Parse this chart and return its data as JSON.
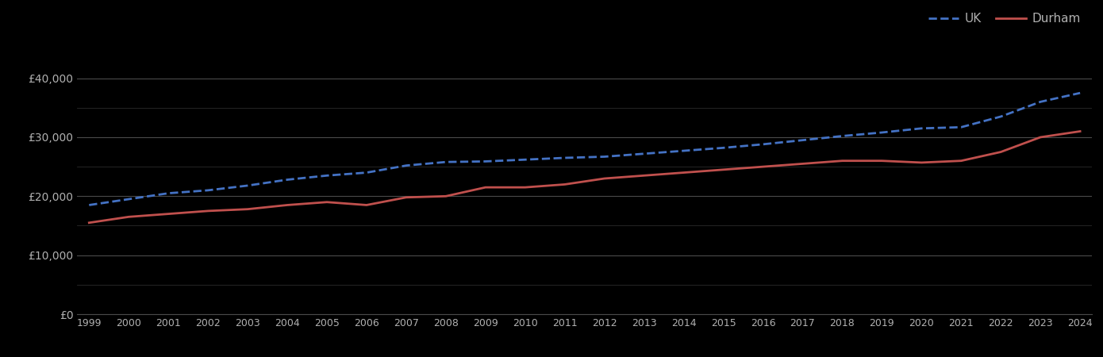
{
  "years": [
    1999,
    2000,
    2001,
    2002,
    2003,
    2004,
    2005,
    2006,
    2007,
    2008,
    2009,
    2010,
    2011,
    2012,
    2013,
    2014,
    2015,
    2016,
    2017,
    2018,
    2019,
    2020,
    2021,
    2022,
    2023,
    2024
  ],
  "uk": [
    18500,
    19500,
    20500,
    21000,
    21800,
    22800,
    23500,
    24000,
    25200,
    25800,
    25900,
    26200,
    26500,
    26700,
    27200,
    27700,
    28200,
    28800,
    29500,
    30200,
    30800,
    31500,
    31700,
    33500,
    36000,
    37500
  ],
  "durham": [
    15500,
    16500,
    17000,
    17500,
    17800,
    18500,
    19000,
    18500,
    19800,
    20000,
    21500,
    21500,
    22000,
    23000,
    23500,
    24000,
    24500,
    25000,
    25500,
    26000,
    26000,
    25700,
    26000,
    27500,
    30000,
    31000
  ],
  "uk_color": "#4472C4",
  "durham_color": "#C0504D",
  "background_color": "#000000",
  "grid_color_major": "#4a4a4a",
  "grid_color_minor": "#2a2a2a",
  "text_color": "#b0b0b0",
  "ylim": [
    0,
    46000
  ],
  "yticks_major": [
    0,
    10000,
    20000,
    30000,
    40000
  ],
  "ytick_labels": [
    "£0",
    "£10,000",
    "£20,000",
    "£30,000",
    "£40,000"
  ],
  "legend_uk": "UK",
  "legend_durham": "Durham",
  "line_width": 2.0
}
